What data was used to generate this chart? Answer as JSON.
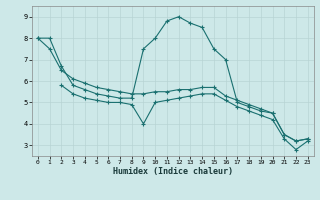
{
  "xlabel": "Humidex (Indice chaleur)",
  "background_color": "#cde8e8",
  "grid_color": "#b8d4d4",
  "line_color": "#1a7070",
  "xlim": [
    -0.5,
    23.5
  ],
  "ylim": [
    2.5,
    9.5
  ],
  "yticks": [
    3,
    4,
    5,
    6,
    7,
    8,
    9
  ],
  "xticks": [
    0,
    1,
    2,
    3,
    4,
    5,
    6,
    7,
    8,
    9,
    10,
    11,
    12,
    13,
    14,
    15,
    16,
    17,
    18,
    19,
    20,
    21,
    22,
    23
  ],
  "line1_x": [
    0,
    1,
    2,
    3,
    4,
    5,
    6,
    7,
    8,
    9,
    10,
    11,
    12,
    13,
    14,
    15,
    16,
    17,
    18,
    19,
    20,
    21,
    22,
    23
  ],
  "line1_y": [
    8.0,
    8.0,
    6.7,
    5.8,
    5.6,
    5.4,
    5.3,
    5.2,
    5.2,
    7.5,
    8.0,
    8.8,
    9.0,
    8.7,
    8.5,
    7.5,
    7.0,
    5.0,
    4.8,
    4.6,
    4.5,
    3.5,
    3.2,
    3.3
  ],
  "line2_x": [
    0,
    1,
    2,
    3,
    4,
    5,
    6,
    7,
    8,
    9,
    10,
    11,
    12,
    13,
    14,
    15,
    16,
    17,
    18,
    19,
    20,
    21,
    22,
    23
  ],
  "line2_y": [
    8.0,
    7.5,
    6.5,
    6.1,
    5.9,
    5.7,
    5.6,
    5.5,
    5.4,
    5.4,
    5.5,
    5.5,
    5.6,
    5.6,
    5.7,
    5.7,
    5.3,
    5.1,
    4.9,
    4.7,
    4.5,
    3.5,
    3.2,
    3.3
  ],
  "line3_x": [
    2,
    3,
    4,
    5,
    6,
    7,
    8,
    9,
    10,
    11,
    12,
    13,
    14,
    15,
    16,
    17,
    18,
    19,
    20,
    21,
    22,
    23
  ],
  "line3_y": [
    5.8,
    5.4,
    5.2,
    5.1,
    5.0,
    5.0,
    4.9,
    4.0,
    5.0,
    5.1,
    5.2,
    5.3,
    5.4,
    5.4,
    5.1,
    4.8,
    4.6,
    4.4,
    4.2,
    3.3,
    2.8,
    3.2
  ]
}
